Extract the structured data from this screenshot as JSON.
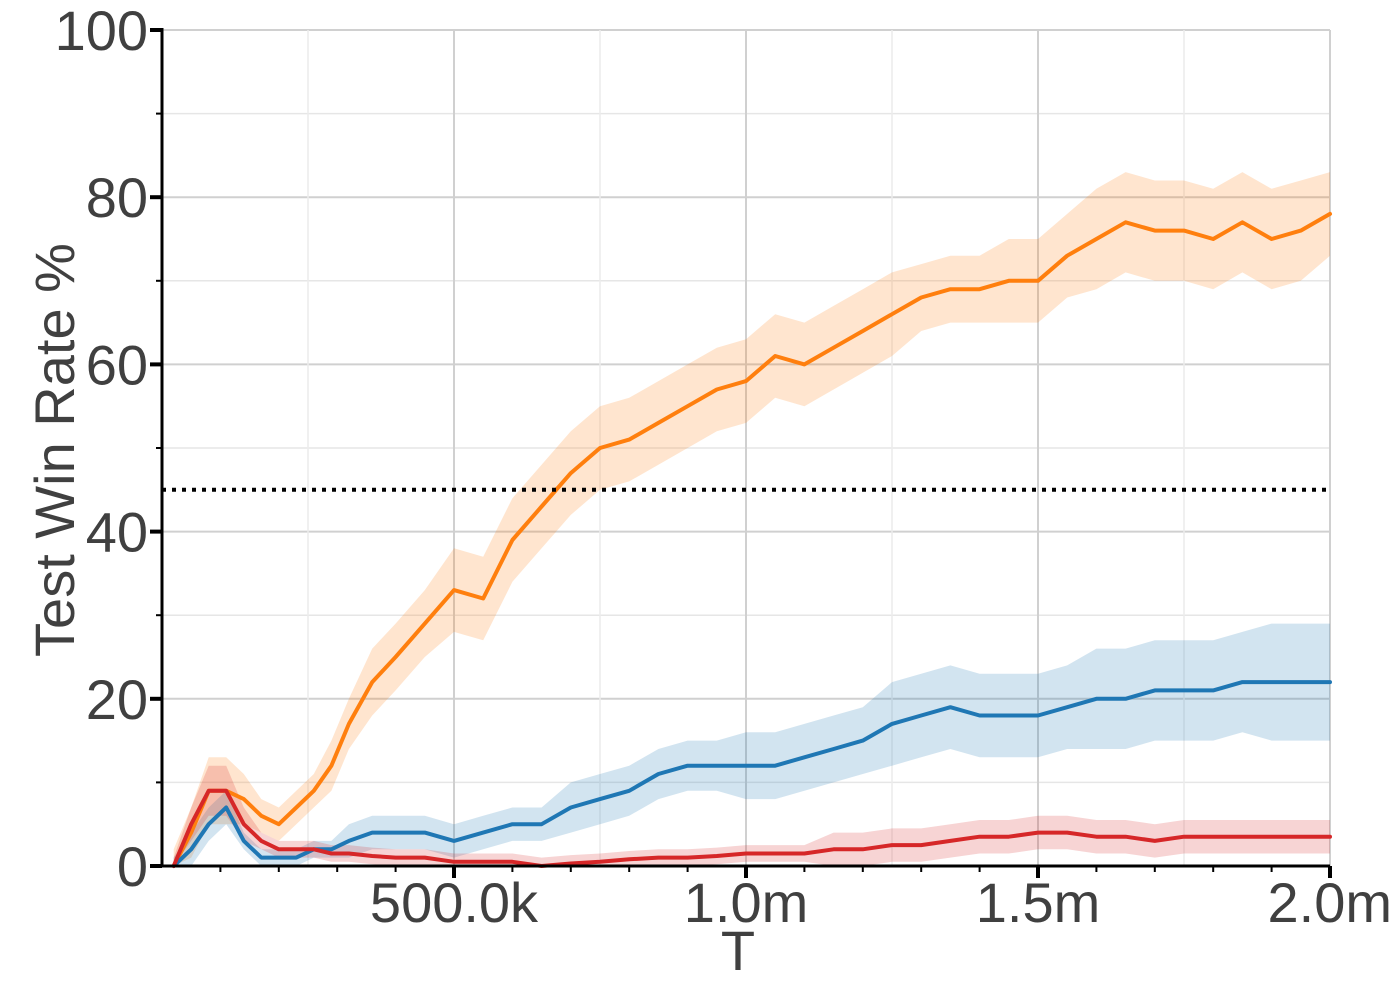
{
  "chart_data": {
    "type": "line",
    "title": "",
    "xlabel": "T",
    "ylabel": "Test Win Rate %",
    "xlim": [
      0,
      2000000
    ],
    "ylim": [
      0,
      100
    ],
    "x_ticks": [
      {
        "value": 500000,
        "label": "500.0k"
      },
      {
        "value": 1000000,
        "label": "1.0m"
      },
      {
        "value": 1500000,
        "label": "1.5m"
      },
      {
        "value": 2000000,
        "label": "2.0m"
      }
    ],
    "y_ticks": [
      {
        "value": 0,
        "label": "0"
      },
      {
        "value": 20,
        "label": "20"
      },
      {
        "value": 40,
        "label": "40"
      },
      {
        "value": 60,
        "label": "60"
      },
      {
        "value": 80,
        "label": "80"
      },
      {
        "value": 100,
        "label": "100"
      }
    ],
    "grid": true,
    "reference_line": {
      "y": 45,
      "style": "dotted",
      "color": "#000000"
    },
    "x": [
      20000,
      50000,
      80000,
      110000,
      140000,
      170000,
      200000,
      230000,
      260000,
      290000,
      320000,
      360000,
      400000,
      450000,
      500000,
      550000,
      600000,
      650000,
      700000,
      750000,
      800000,
      850000,
      900000,
      950000,
      1000000,
      1050000,
      1100000,
      1150000,
      1200000,
      1250000,
      1300000,
      1350000,
      1400000,
      1450000,
      1500000,
      1550000,
      1600000,
      1650000,
      1700000,
      1750000,
      1800000,
      1850000,
      1900000,
      1950000,
      2000000
    ],
    "series": [
      {
        "color": "#ff7f0e",
        "values": [
          0,
          4,
          9,
          9,
          8,
          6,
          5,
          7,
          9,
          12,
          17,
          22,
          25,
          29,
          33,
          32,
          39,
          43,
          47,
          50,
          51,
          53,
          55,
          57,
          58,
          61,
          60,
          62,
          64,
          66,
          68,
          69,
          69,
          70,
          70,
          73,
          75,
          77,
          76,
          76,
          75,
          77,
          75,
          76,
          78
        ],
        "band_width": [
          2,
          3,
          4,
          4,
          3,
          2,
          2,
          2,
          2,
          3,
          3,
          4,
          4,
          4,
          5,
          5,
          5,
          5,
          5,
          5,
          5,
          5,
          5,
          5,
          5,
          5,
          5,
          5,
          5,
          5,
          4,
          4,
          4,
          5,
          5,
          5,
          6,
          6,
          6,
          6,
          6,
          6,
          6,
          6,
          5
        ]
      },
      {
        "color": "#1f77b4",
        "values": [
          0,
          2,
          5,
          7,
          3,
          1,
          1,
          1,
          2,
          2,
          3,
          4,
          4,
          4,
          3,
          4,
          5,
          5,
          7,
          8,
          9,
          11,
          12,
          12,
          12,
          12,
          13,
          14,
          15,
          17,
          18,
          19,
          18,
          18,
          18,
          19,
          20,
          20,
          21,
          21,
          21,
          22,
          22,
          22,
          22
        ],
        "band_width": [
          1,
          2,
          2,
          2,
          1,
          1,
          1,
          1,
          1,
          1,
          2,
          2,
          2,
          2,
          2,
          2,
          2,
          2,
          3,
          3,
          3,
          3,
          3,
          3,
          4,
          4,
          4,
          4,
          4,
          5,
          5,
          5,
          5,
          5,
          5,
          5,
          6,
          6,
          6,
          6,
          6,
          6,
          7,
          7,
          7
        ]
      },
      {
        "color": "#d62728",
        "values": [
          0,
          5,
          9,
          9,
          5,
          3,
          2,
          2,
          2,
          1.5,
          1.5,
          1.2,
          1,
          1,
          0.5,
          0.5,
          0.5,
          0,
          0.3,
          0.5,
          0.8,
          1,
          1,
          1.2,
          1.5,
          1.5,
          1.5,
          2,
          2,
          2.5,
          2.5,
          3,
          3.5,
          3.5,
          4,
          4,
          3.5,
          3.5,
          3,
          3.5,
          3.5,
          3.5,
          3.5,
          3.5,
          3.5
        ],
        "band_width": [
          1,
          2,
          3,
          3,
          2,
          1,
          1,
          1,
          1,
          1,
          1,
          1,
          1,
          1,
          1,
          1,
          1,
          1,
          1,
          1,
          1,
          1,
          1,
          1,
          1,
          1,
          1,
          2,
          2,
          2,
          2,
          2,
          2,
          2,
          2,
          2,
          2,
          2,
          2,
          2,
          2,
          2,
          2,
          2,
          2
        ]
      }
    ]
  }
}
